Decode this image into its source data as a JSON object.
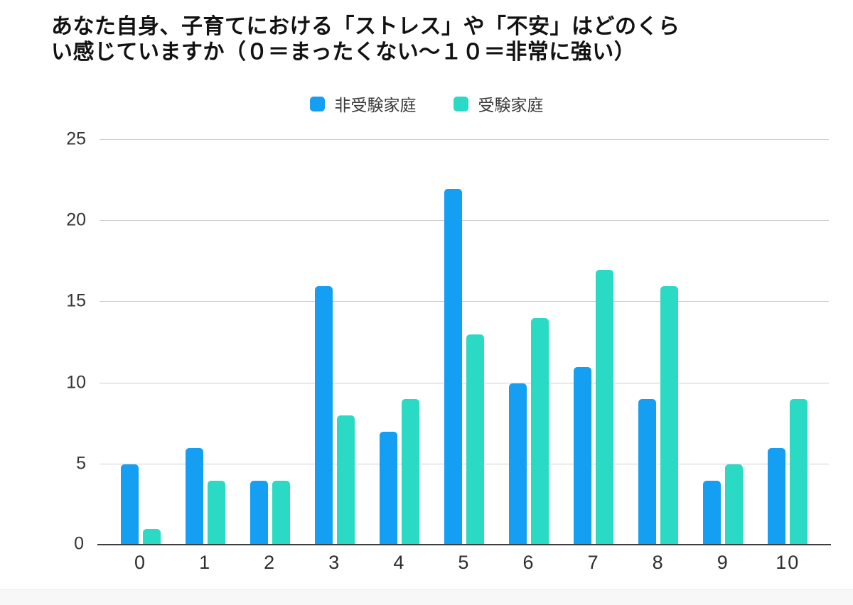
{
  "title": {
    "line1": "あなた自身、子育てにおける「ストレス」や「不安」はどのくら",
    "line2": "い感じていますか（０＝まったくない〜１０＝非常に強い）"
  },
  "legend": {
    "items": [
      {
        "label": "非受験家庭",
        "color": "#149FF3"
      },
      {
        "label": "受験家庭",
        "color": "#2BDAC4"
      }
    ]
  },
  "colors": {
    "series_blue": "#149FF3",
    "series_teal": "#2BDAC4",
    "gridline": "#cfcfcf",
    "axis_line": "#3e3e3e",
    "text": "#353535"
  },
  "chart_data": {
    "type": "bar",
    "title": "あなた自身、子育てにおける「ストレス」や「不安」はどのくらい感じていますか（０＝まったくない〜１０＝非常に強い）",
    "categories": [
      "0",
      "1",
      "2",
      "3",
      "4",
      "5",
      "6",
      "7",
      "8",
      "9",
      "10"
    ],
    "series": [
      {
        "name": "非受験家庭",
        "color": "#149FF3",
        "values": [
          5,
          6,
          4,
          16,
          7,
          22,
          10,
          11,
          9,
          4,
          6
        ]
      },
      {
        "name": "受験家庭",
        "color": "#2BDAC4",
        "values": [
          1,
          4,
          4,
          8,
          9,
          13,
          14,
          17,
          16,
          5,
          9
        ]
      }
    ],
    "xlabel": "",
    "ylabel": "",
    "ylim": [
      0,
      25
    ],
    "yticks": [
      0,
      5,
      10,
      15,
      20,
      25
    ],
    "grid": true,
    "legend_position": "top"
  }
}
